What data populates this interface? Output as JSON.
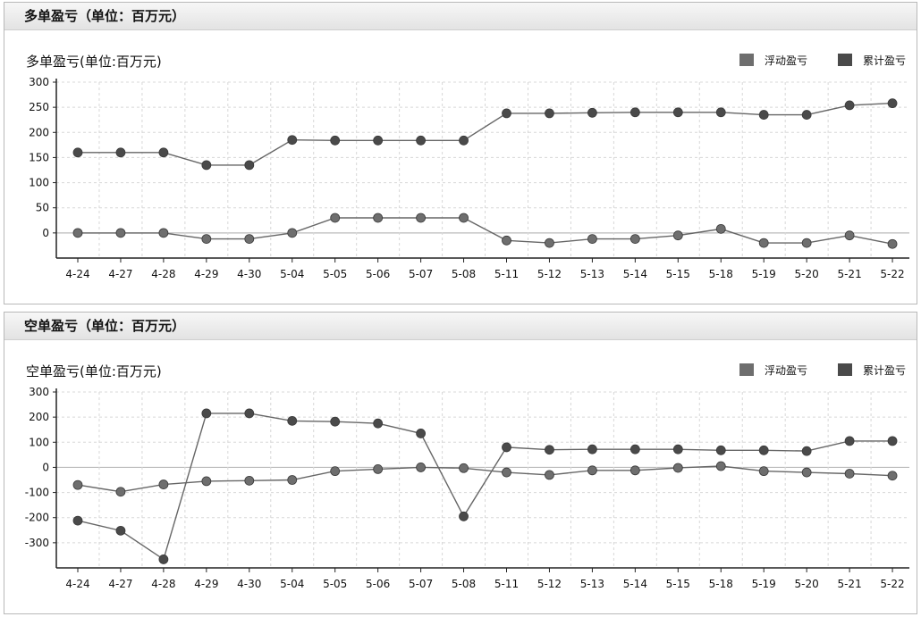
{
  "panels": {
    "long": {
      "header": "多单盈亏（单位：百万元）"
    },
    "short": {
      "header": "空单盈亏（单位：百万元）"
    }
  },
  "colors": {
    "floating": "#6e6e6e",
    "cumulative": "#4a4a4a",
    "line": "#666666",
    "grid": "#d8d8d8",
    "axis": "#222222",
    "zero_line": "#bbbbbb"
  },
  "chart_data": [
    {
      "type": "line",
      "title": "多单盈亏(单位:百万元)",
      "legend_position": "top-right",
      "legend": [
        "浮动盈亏",
        "累计盈亏"
      ],
      "categories": [
        "4-24",
        "4-27",
        "4-28",
        "4-29",
        "4-30",
        "5-04",
        "5-05",
        "5-06",
        "5-07",
        "5-08",
        "5-11",
        "5-12",
        "5-13",
        "5-14",
        "5-15",
        "5-18",
        "5-19",
        "5-20",
        "5-21",
        "5-22"
      ],
      "yticks": [
        0,
        50,
        100,
        150,
        200,
        250,
        300
      ],
      "ylim": [
        -50,
        300
      ],
      "grid": true,
      "series": [
        {
          "name": "浮动盈亏",
          "values": [
            0,
            0,
            0,
            -12,
            -12,
            0,
            30,
            30,
            30,
            30,
            -15,
            -20,
            -12,
            -12,
            -5,
            8,
            -20,
            -20,
            -5,
            -22
          ]
        },
        {
          "name": "累计盈亏",
          "values": [
            160,
            160,
            160,
            135,
            135,
            185,
            184,
            184,
            184,
            184,
            238,
            238,
            239,
            240,
            240,
            240,
            235,
            235,
            254,
            258
          ]
        }
      ]
    },
    {
      "type": "line",
      "title": "空单盈亏(单位:百万元)",
      "legend_position": "top-right",
      "legend": [
        "浮动盈亏",
        "累计盈亏"
      ],
      "categories": [
        "4-24",
        "4-27",
        "4-28",
        "4-29",
        "4-30",
        "5-04",
        "5-05",
        "5-06",
        "5-07",
        "5-08",
        "5-11",
        "5-12",
        "5-13",
        "5-14",
        "5-15",
        "5-18",
        "5-19",
        "5-20",
        "5-21",
        "5-22"
      ],
      "yticks": [
        -300,
        -200,
        -100,
        0,
        100,
        200,
        300
      ],
      "ylim": [
        -400,
        300
      ],
      "grid": true,
      "series": [
        {
          "name": "浮动盈亏",
          "values": [
            -70,
            -97,
            -68,
            -55,
            -53,
            -50,
            -15,
            -7,
            0,
            -3,
            -20,
            -30,
            -12,
            -12,
            -2,
            5,
            -15,
            -20,
            -25,
            -33
          ]
        },
        {
          "name": "累计盈亏",
          "values": [
            -212,
            -252,
            -366,
            215,
            215,
            185,
            182,
            175,
            135,
            -195,
            80,
            70,
            72,
            72,
            72,
            68,
            68,
            65,
            105,
            105
          ]
        }
      ]
    }
  ]
}
